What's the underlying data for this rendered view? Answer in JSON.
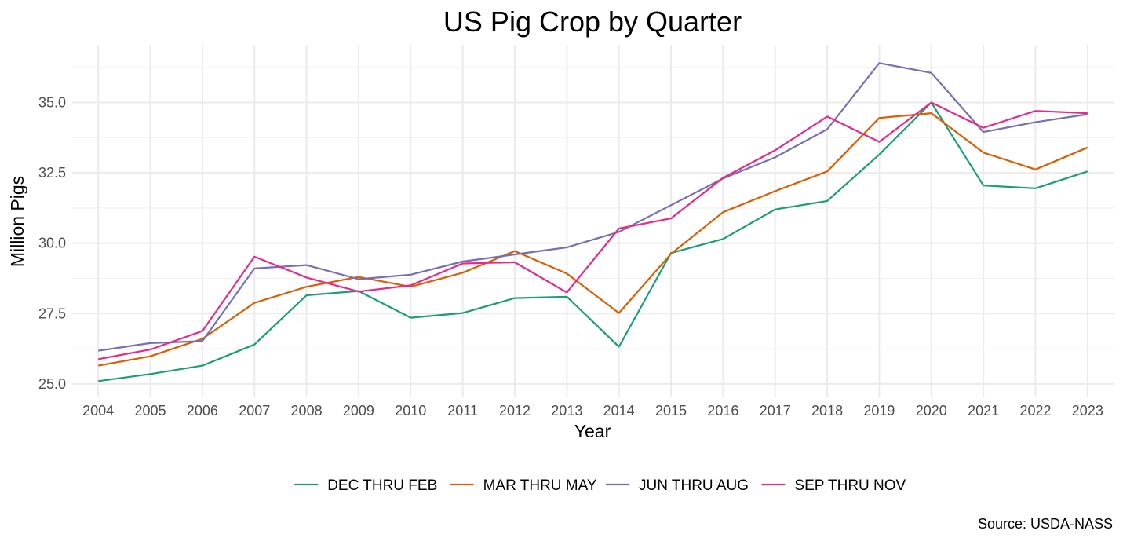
{
  "chart_data": {
    "type": "line",
    "title": "US Pig Crop by Quarter",
    "xlabel": "Year",
    "ylabel": "Million Pigs",
    "caption": "Source: USDA-NASS",
    "x": [
      2004,
      2005,
      2006,
      2007,
      2008,
      2009,
      2010,
      2011,
      2012,
      2013,
      2014,
      2015,
      2016,
      2017,
      2018,
      2019,
      2020,
      2021,
      2022,
      2023
    ],
    "x_tick_labels": [
      "2004",
      "2005",
      "2006",
      "2007",
      "2008",
      "2009",
      "2010",
      "2011",
      "2012",
      "2013",
      "2014",
      "2015",
      "2016",
      "2017",
      "2018",
      "2019",
      "2020",
      "2021",
      "2022",
      "2023"
    ],
    "y_ticks": [
      25.0,
      27.5,
      30.0,
      32.5,
      35.0
    ],
    "y_tick_labels": [
      "25.0",
      "27.5",
      "30.0",
      "32.5",
      "35.0"
    ],
    "xlim": [
      2003.5,
      2023.5
    ],
    "ylim": [
      24.55,
      37.05
    ],
    "grid": true,
    "legend_position": "bottom",
    "series": [
      {
        "name": "DEC THRU FEB",
        "color": "#1b9e77",
        "values": [
          25.1,
          25.35,
          25.65,
          26.4,
          28.15,
          28.3,
          27.35,
          27.52,
          28.05,
          28.1,
          26.32,
          29.65,
          30.15,
          31.2,
          31.5,
          33.15,
          35.0,
          32.05,
          31.95,
          32.55
        ]
      },
      {
        "name": "MAR THRU MAY",
        "color": "#d95f02",
        "values": [
          25.65,
          25.98,
          26.6,
          27.88,
          28.45,
          28.8,
          28.45,
          28.95,
          29.72,
          28.92,
          27.52,
          29.62,
          31.1,
          31.85,
          32.55,
          34.45,
          34.62,
          33.22,
          32.62,
          33.4
        ]
      },
      {
        "name": "JUN THRU AUG",
        "color": "#7570b3",
        "values": [
          26.18,
          26.45,
          26.52,
          29.1,
          29.22,
          28.72,
          28.88,
          29.35,
          29.6,
          29.85,
          30.4,
          31.35,
          32.3,
          33.05,
          34.05,
          36.4,
          36.05,
          33.95,
          34.3,
          34.58
        ]
      },
      {
        "name": "SEP THRU NOV",
        "color": "#e7298a",
        "values": [
          25.88,
          26.22,
          26.88,
          29.52,
          28.78,
          28.28,
          28.5,
          29.28,
          29.32,
          28.25,
          30.52,
          30.88,
          32.32,
          33.3,
          34.5,
          33.6,
          35.0,
          34.1,
          34.7,
          34.62
        ]
      }
    ]
  }
}
